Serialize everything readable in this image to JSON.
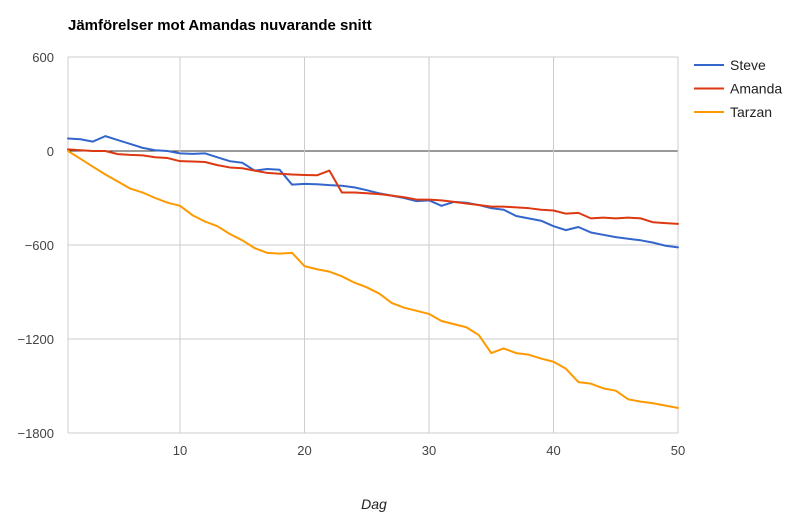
{
  "chart_data": {
    "type": "line",
    "title": "Jämförelser mot Amandas nuvarande snitt",
    "xlabel": "Dag",
    "ylabel": "",
    "xlim": [
      1,
      50
    ],
    "ylim": [
      -1800,
      600
    ],
    "x_ticks": [
      10,
      20,
      30,
      40,
      50
    ],
    "y_ticks": [
      600,
      0,
      -600,
      -1200,
      -1800
    ],
    "y_tick_labels": [
      "600",
      "0",
      "−600",
      "−1200",
      "−1800"
    ],
    "grid": true,
    "legend_position": "right",
    "x": [
      1,
      2,
      3,
      4,
      5,
      6,
      7,
      8,
      9,
      10,
      11,
      12,
      13,
      14,
      15,
      16,
      17,
      18,
      19,
      20,
      21,
      22,
      23,
      24,
      25,
      26,
      27,
      28,
      29,
      30,
      31,
      32,
      33,
      34,
      35,
      36,
      37,
      38,
      39,
      40,
      41,
      42,
      43,
      44,
      45,
      46,
      47,
      48,
      49,
      50
    ],
    "series": [
      {
        "name": "Steve",
        "color": "#3366cc",
        "values": [
          80,
          75,
          60,
          95,
          70,
          45,
          20,
          5,
          0,
          -15,
          -18,
          -15,
          -40,
          -65,
          -75,
          -125,
          -115,
          -120,
          -215,
          -210,
          -212,
          -218,
          -222,
          -232,
          -250,
          -270,
          -285,
          -300,
          -320,
          -315,
          -350,
          -325,
          -330,
          -345,
          -365,
          -375,
          -415,
          -430,
          -445,
          -480,
          -505,
          -485,
          -520,
          -535,
          -550,
          -560,
          -570,
          -585,
          -605,
          -615
        ]
      },
      {
        "name": "Amanda",
        "color": "#dc3912",
        "values": [
          10,
          5,
          0,
          0,
          -20,
          -25,
          -28,
          -40,
          -45,
          -65,
          -67,
          -70,
          -90,
          -105,
          -110,
          -125,
          -140,
          -145,
          -150,
          -153,
          -155,
          -125,
          -265,
          -265,
          -270,
          -275,
          -285,
          -295,
          -310,
          -310,
          -315,
          -325,
          -335,
          -345,
          -355,
          -355,
          -360,
          -365,
          -375,
          -380,
          -400,
          -395,
          -430,
          -425,
          -430,
          -425,
          -430,
          -455,
          -460,
          -465
        ]
      },
      {
        "name": "Tarzan",
        "color": "#ff9900",
        "values": [
          0,
          -50,
          -100,
          -150,
          -195,
          -240,
          -265,
          -300,
          -330,
          -350,
          -410,
          -450,
          -480,
          -530,
          -570,
          -620,
          -650,
          -655,
          -650,
          -735,
          -755,
          -770,
          -800,
          -840,
          -870,
          -910,
          -970,
          -1000,
          -1020,
          -1040,
          -1085,
          -1105,
          -1125,
          -1175,
          -1290,
          -1260,
          -1290,
          -1300,
          -1325,
          -1345,
          -1390,
          -1475,
          -1485,
          -1515,
          -1530,
          -1585,
          -1600,
          -1610,
          -1625,
          -1640
        ]
      }
    ]
  }
}
